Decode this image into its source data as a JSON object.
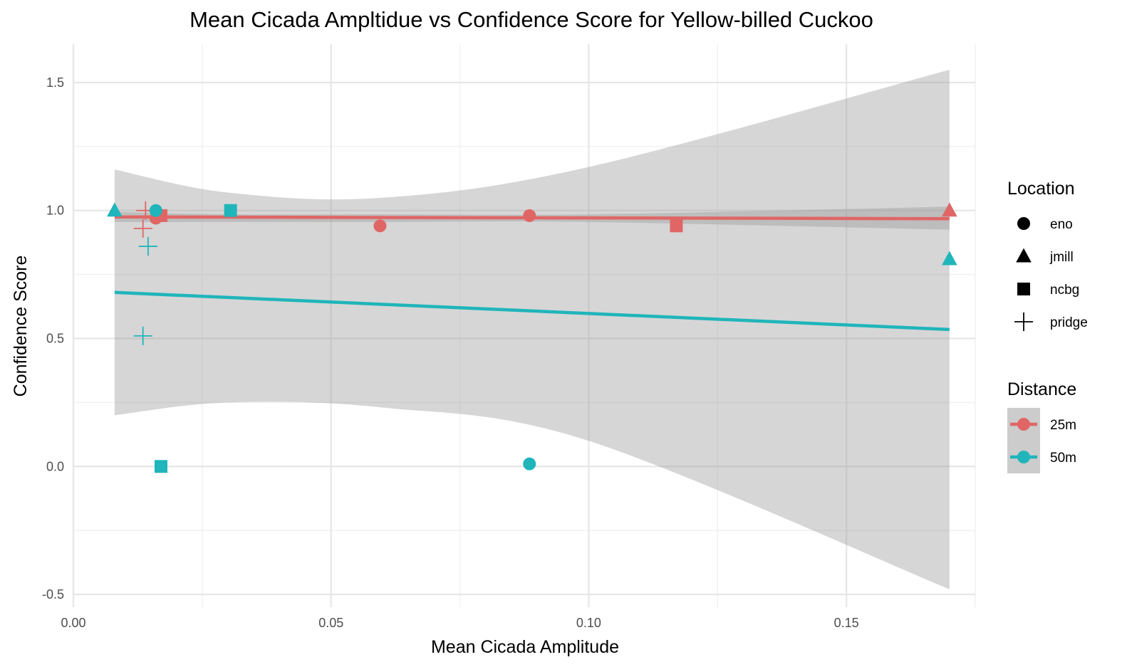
{
  "chart_data": {
    "type": "scatter",
    "title": "Mean Cicada Ampltidue vs Confidence Score for Yellow-billed Cuckoo",
    "xlabel": "Mean Cicada Amplitude",
    "ylabel": "Confidence Score",
    "xlim": [
      0.0,
      0.175
    ],
    "ylim": [
      -0.55,
      1.65
    ],
    "x_ticks": [
      0.0,
      0.05,
      0.1,
      0.15
    ],
    "x_tick_labels": [
      "0.00",
      "0.05",
      "0.10",
      "0.15"
    ],
    "y_ticks": [
      -0.5,
      0.0,
      0.5,
      1.0,
      1.5
    ],
    "y_tick_labels": [
      "-0.5",
      "0.0",
      "0.5",
      "1.0",
      "1.5"
    ],
    "grid": true,
    "legend_position": "right",
    "legends": [
      {
        "title": "Location",
        "items": [
          {
            "label": "eno",
            "shape": "circle"
          },
          {
            "label": "jmill",
            "shape": "triangle"
          },
          {
            "label": "ncbg",
            "shape": "square"
          },
          {
            "label": "pridge",
            "shape": "plus"
          }
        ]
      },
      {
        "title": "Distance",
        "items": [
          {
            "label": "25m",
            "color": "#e06666"
          },
          {
            "label": "50m",
            "color": "#1fb5ba"
          }
        ]
      }
    ],
    "series": [
      {
        "name": "25m",
        "color": "#e06666",
        "points": [
          {
            "x": 0.016,
            "y": 0.97,
            "location": "eno"
          },
          {
            "x": 0.0595,
            "y": 0.94,
            "location": "eno"
          },
          {
            "x": 0.0885,
            "y": 0.98,
            "location": "eno"
          },
          {
            "x": 0.17,
            "y": 1.0,
            "location": "jmill"
          },
          {
            "x": 0.017,
            "y": 0.98,
            "location": "ncbg"
          },
          {
            "x": 0.117,
            "y": 0.94,
            "location": "ncbg"
          },
          {
            "x": 0.014,
            "y": 1.0,
            "location": "pridge"
          },
          {
            "x": 0.0135,
            "y": 0.93,
            "location": "pridge"
          }
        ],
        "trend": {
          "x": [
            0.008,
            0.17
          ],
          "y": [
            0.975,
            0.968
          ]
        },
        "band": {
          "lower": [
            0.955,
            0.955,
            0.955,
            0.955,
            0.925
          ],
          "upper": [
            0.995,
            0.985,
            0.985,
            0.985,
            1.015
          ]
        }
      },
      {
        "name": "50m",
        "color": "#1fb5ba",
        "points": [
          {
            "x": 0.016,
            "y": 1.0,
            "location": "eno"
          },
          {
            "x": 0.0885,
            "y": 0.01,
            "location": "eno"
          },
          {
            "x": 0.008,
            "y": 1.0,
            "location": "jmill"
          },
          {
            "x": 0.17,
            "y": 0.81,
            "location": "jmill"
          },
          {
            "x": 0.0305,
            "y": 1.0,
            "location": "ncbg"
          },
          {
            "x": 0.017,
            "y": 0.0,
            "location": "ncbg"
          },
          {
            "x": 0.0145,
            "y": 0.86,
            "location": "pridge"
          },
          {
            "x": 0.0135,
            "y": 0.51,
            "location": "pridge"
          }
        ],
        "trend": {
          "x": [
            0.008,
            0.17
          ],
          "y": [
            0.68,
            0.535
          ]
        },
        "band": {
          "lower": [
            0.2,
            0.25,
            0.23,
            0.1,
            -0.48
          ],
          "upper": [
            1.16,
            1.07,
            1.05,
            1.17,
            1.55
          ]
        }
      }
    ],
    "band_x": [
      0.008,
      0.03,
      0.06,
      0.1,
      0.17
    ]
  }
}
